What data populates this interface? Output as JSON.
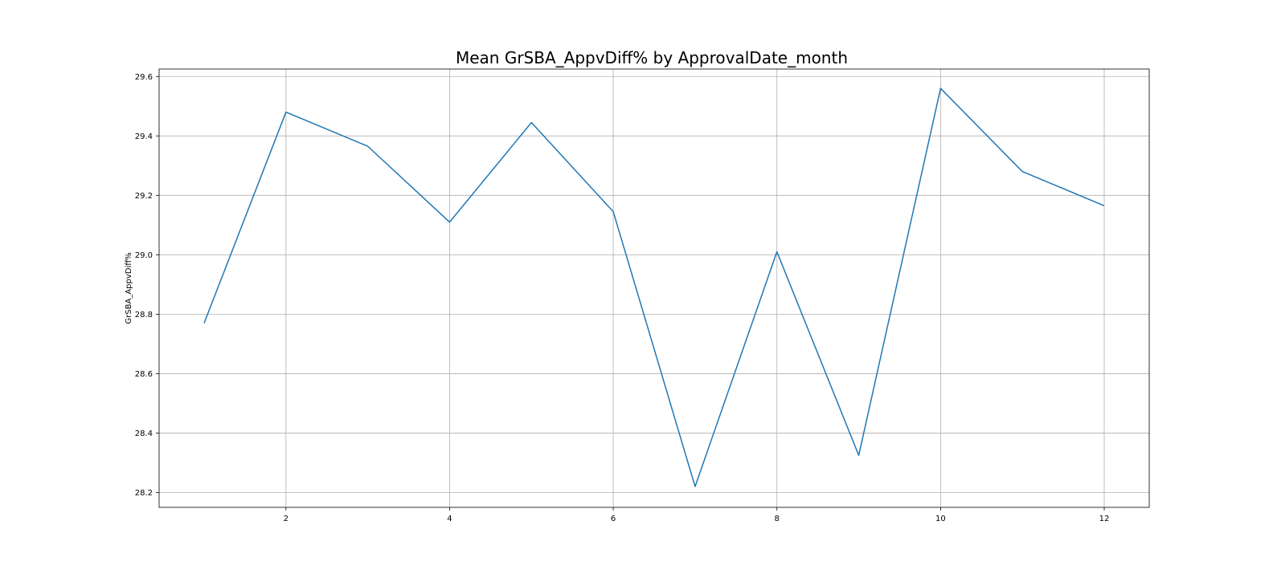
{
  "chart_data": {
    "type": "line",
    "title": "Mean GrSBA_AppvDiff% by ApprovalDate_month",
    "xlabel": "",
    "ylabel": "GrSBA_AppvDiff%",
    "xlim": [
      0.45,
      12.55
    ],
    "ylim": [
      28.15,
      29.625
    ],
    "x_ticks": [
      2,
      4,
      6,
      8,
      10,
      12
    ],
    "y_ticks": [
      28.2,
      28.4,
      28.6,
      28.8,
      29.0,
      29.2,
      29.4,
      29.6
    ],
    "x_tick_labels": [
      "2",
      "4",
      "6",
      "8",
      "10",
      "12"
    ],
    "y_tick_labels": [
      "28.2",
      "28.4",
      "28.6",
      "28.8",
      "29.0",
      "29.2",
      "29.4",
      "29.6"
    ],
    "grid": true,
    "x": [
      1,
      2,
      3,
      4,
      5,
      6,
      7,
      8,
      9,
      10,
      11,
      12
    ],
    "series": [
      {
        "values": [
          28.77,
          29.48,
          29.365,
          29.11,
          29.445,
          29.145,
          28.22,
          29.01,
          28.325,
          29.56,
          29.28,
          29.165
        ],
        "color": "#1f77b4"
      }
    ]
  }
}
